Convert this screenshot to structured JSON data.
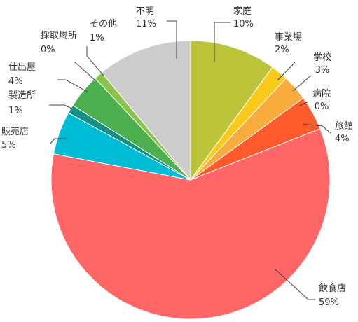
{
  "chart_data": {
    "type": "pie",
    "title": "",
    "start": "top",
    "direction": "clockwise",
    "slices": [
      {
        "name": "家庭",
        "value": 10,
        "label": "10%",
        "color": "#bcc43a"
      },
      {
        "name": "事業場",
        "value": 2,
        "label": "2%",
        "color": "#fbc91c"
      },
      {
        "name": "学校",
        "value": 3,
        "label": "3%",
        "color": "#f7ac3d"
      },
      {
        "name": "病院",
        "value": 0,
        "label": "0%",
        "color": "#f7ac3d"
      },
      {
        "name": "旅館",
        "value": 4,
        "label": "4%",
        "color": "#ff5a2b"
      },
      {
        "name": "飲食店",
        "value": 59,
        "label": "59%",
        "color": "#ff6666"
      },
      {
        "name": "販売店",
        "value": 5,
        "label": "5%",
        "color": "#00bcd4"
      },
      {
        "name": "製造所",
        "value": 1,
        "label": "1%",
        "color": "#169084"
      },
      {
        "name": "仕出屋",
        "value": 4,
        "label": "4%",
        "color": "#4caf50"
      },
      {
        "name": "採取場所",
        "value": 0,
        "label": "0%",
        "color": "#8bc34a"
      },
      {
        "name": "その他",
        "value": 1,
        "label": "1%",
        "color": "#8bc34a"
      },
      {
        "name": "不明",
        "value": 11,
        "label": "11%",
        "color": "#cccccc"
      }
    ]
  }
}
